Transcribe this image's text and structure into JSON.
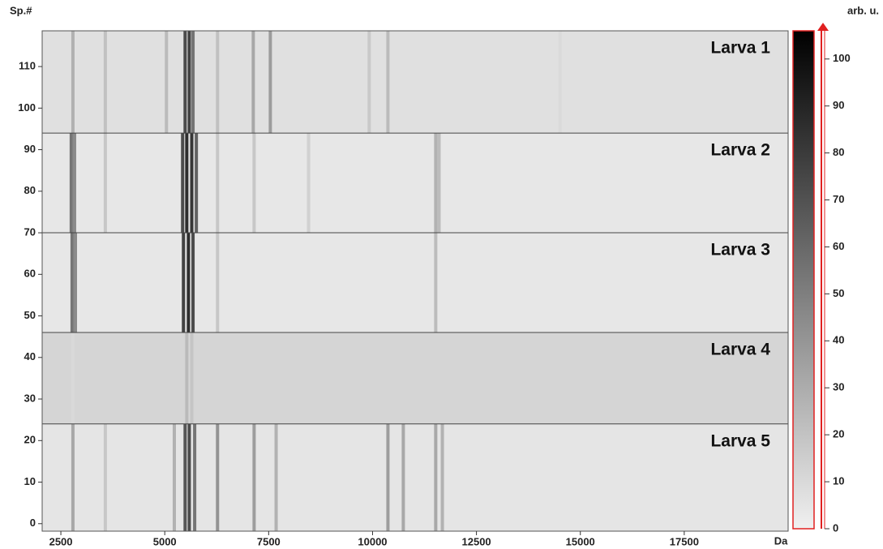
{
  "chart_data": {
    "type": "gel",
    "y_label": "Sp.#",
    "x_unit_label": "Da",
    "colorbar_label": "arb. u.",
    "xlim": [
      2050,
      20000
    ],
    "xticks": [
      2500,
      5000,
      7500,
      10000,
      12500,
      15000,
      17500
    ],
    "ylim": [
      -1.8,
      118.6
    ],
    "yticks": [
      0,
      10,
      20,
      30,
      40,
      50,
      60,
      70,
      80,
      90,
      100,
      110
    ],
    "clim": [
      0,
      106
    ],
    "cticks": [
      0,
      10,
      20,
      30,
      40,
      50,
      60,
      70,
      80,
      90,
      100
    ],
    "colorbar_color": "#e02020",
    "groups": [
      {
        "name": "Larva 1",
        "from": 94,
        "to": 118.6,
        "background": 7,
        "masses": [
          2790,
          3570,
          5040,
          5490,
          5590,
          5680,
          6270,
          7130,
          7540,
          9920,
          10370,
          14510
        ],
        "intensities": [
          30,
          22,
          25,
          80,
          85,
          60,
          22,
          35,
          40,
          18,
          25,
          10
        ]
      },
      {
        "name": "Larva 2",
        "from": 70,
        "to": 94,
        "background": 4,
        "masses": [
          2750,
          2830,
          3570,
          5430,
          5530,
          5650,
          5760,
          6270,
          7150,
          8460,
          11520,
          11600
        ],
        "intensities": [
          60,
          50,
          20,
          80,
          95,
          90,
          70,
          20,
          20,
          15,
          30,
          25
        ]
      },
      {
        "name": "Larva 3",
        "from": 46,
        "to": 70,
        "background": 4,
        "masses": [
          2770,
          2850,
          5450,
          5570,
          5680,
          6270,
          11520
        ],
        "intensities": [
          60,
          50,
          85,
          95,
          80,
          20,
          25
        ]
      },
      {
        "name": "Larva 4",
        "from": 24,
        "to": 46,
        "background": 12,
        "masses": [
          2790,
          5530,
          5650
        ],
        "intensities": [
          10,
          25,
          20
        ]
      },
      {
        "name": "Larva 5",
        "from": -1.8,
        "to": 24,
        "background": 5,
        "masses": [
          2790,
          3570,
          5230,
          5490,
          5590,
          5720,
          6270,
          7150,
          7680,
          10370,
          10740,
          11520,
          11680
        ],
        "intensities": [
          35,
          20,
          30,
          75,
          80,
          60,
          45,
          40,
          30,
          40,
          35,
          35,
          30
        ]
      }
    ]
  }
}
